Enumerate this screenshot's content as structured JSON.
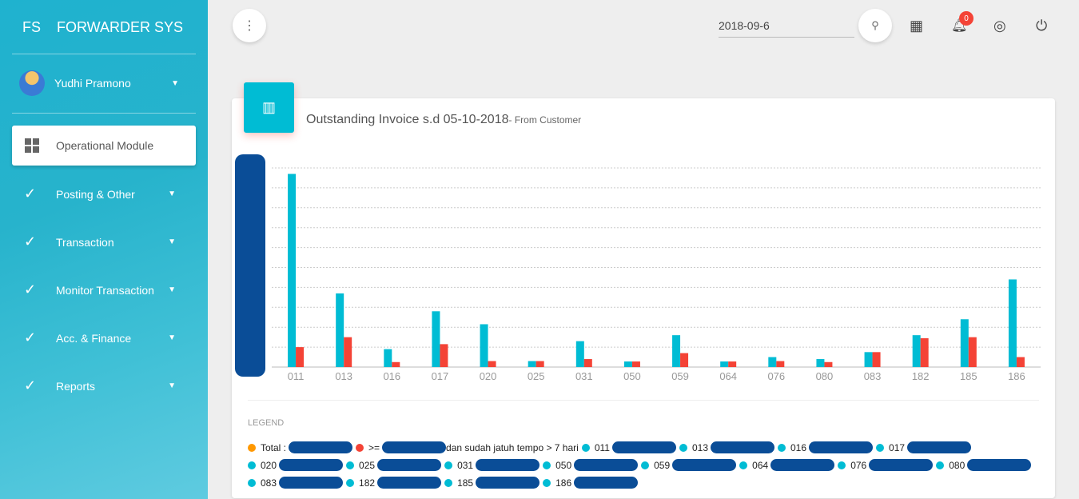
{
  "app": {
    "short": "FS",
    "title": "FORWARDER SYS"
  },
  "user": {
    "name": "Yudhi Pramono"
  },
  "sidebar": {
    "active": "Operational Module",
    "items": [
      {
        "label": "Posting & Other"
      },
      {
        "label": "Transaction"
      },
      {
        "label": "Monitor Transaction"
      },
      {
        "label": "Acc. & Finance"
      },
      {
        "label": "Reports"
      }
    ]
  },
  "topbar": {
    "date": "2018-09-6",
    "notifications": "0"
  },
  "card": {
    "title": "Outstanding Invoice s.d 05-10-2018",
    "subtitle": "- From Customer",
    "legend_title": "LEGEND"
  },
  "colors": {
    "primary": "#00bcd4",
    "overdue": "#f44336",
    "total": "#ff9800"
  },
  "legend": [
    {
      "label": "Total :",
      "color": "#ff9800"
    },
    {
      "label": ">=",
      "suffix": "dan sudah jatuh tempo > 7 hari",
      "color": "#f44336"
    },
    {
      "label": "011"
    },
    {
      "label": "013"
    },
    {
      "label": "016"
    },
    {
      "label": "017"
    },
    {
      "label": "020"
    },
    {
      "label": "025"
    },
    {
      "label": "031"
    },
    {
      "label": "050"
    },
    {
      "label": "059"
    },
    {
      "label": "064"
    },
    {
      "label": "076"
    },
    {
      "label": "080"
    },
    {
      "label": "083"
    },
    {
      "label": "182"
    },
    {
      "label": "185"
    },
    {
      "label": "186"
    }
  ],
  "chart_data": {
    "type": "bar",
    "title": "Outstanding Invoice s.d 05-10-2018",
    "ylim": [
      0,
      10
    ],
    "grid": true,
    "categories": [
      "011",
      "013",
      "016",
      "017",
      "020",
      "025",
      "031",
      "050",
      "059",
      "064",
      "076",
      "080",
      "083",
      "182",
      "185",
      "186"
    ],
    "series": [
      {
        "name": "Outstanding",
        "color": "#00bcd4",
        "values": [
          9.7,
          3.7,
          0.9,
          2.8,
          2.15,
          0.3,
          1.3,
          0.28,
          1.6,
          0.28,
          0.5,
          0.4,
          0.75,
          1.6,
          2.4,
          4.4
        ]
      },
      {
        "name": "Overdue > 7 hari",
        "color": "#f44336",
        "values": [
          1.0,
          1.5,
          0.25,
          1.15,
          0.3,
          0.3,
          0.4,
          0.28,
          0.7,
          0.28,
          0.3,
          0.25,
          0.75,
          1.45,
          1.5,
          0.5
        ]
      }
    ]
  }
}
